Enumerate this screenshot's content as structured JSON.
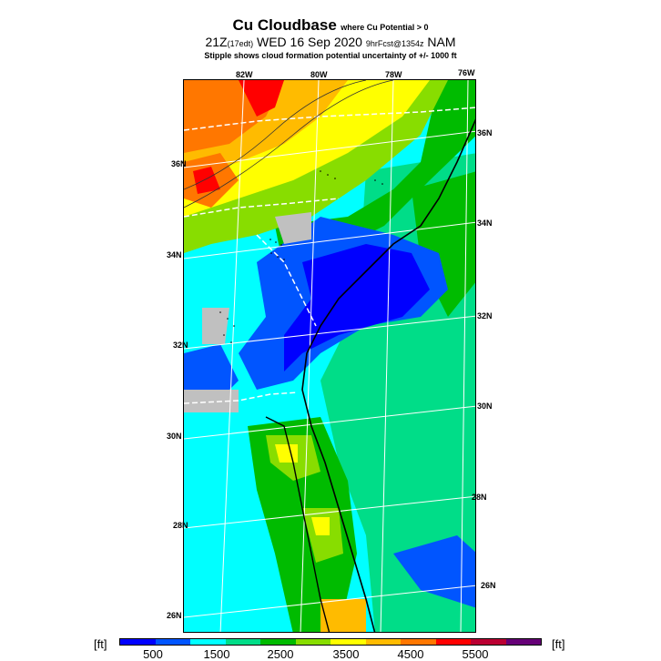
{
  "title": {
    "main": "Cu Cloudbase",
    "main_note": "where Cu Potential > 0",
    "line2_time": "21Z",
    "line2_time_note": "(17edt)",
    "line2_date": "WED 16 Sep 2020",
    "line2_fcst": "9hrFcst@1354",
    "line2_mark": "z",
    "line2_model": "NAM",
    "line3": "Stipple shows cloud formation potential uncertainty of +/- 1000 ft"
  },
  "longitude_labels": [
    "82W",
    "80W",
    "78W",
    "76W"
  ],
  "latitude_labels_left": [
    "36N",
    "34N",
    "32N",
    "30N",
    "28N",
    "26N"
  ],
  "latitude_labels_right": [
    "36N",
    "34N",
    "32N",
    "30N",
    "28N",
    "26N"
  ],
  "colorbar": {
    "unit_left": "[ft]",
    "unit_right": "[ft]",
    "ticks": [
      "500",
      "1500",
      "2500",
      "3500",
      "4500",
      "5500"
    ],
    "colors": [
      "#0000ff",
      "#0055ff",
      "#00ffff",
      "#00dd88",
      "#00bb00",
      "#88dd00",
      "#ffff00",
      "#ffbb00",
      "#ff7700",
      "#ff0000",
      "#bb0033",
      "#660077"
    ]
  },
  "map_colors": {
    "no_data": "#c0c0c0",
    "sea": "#00ffff"
  }
}
